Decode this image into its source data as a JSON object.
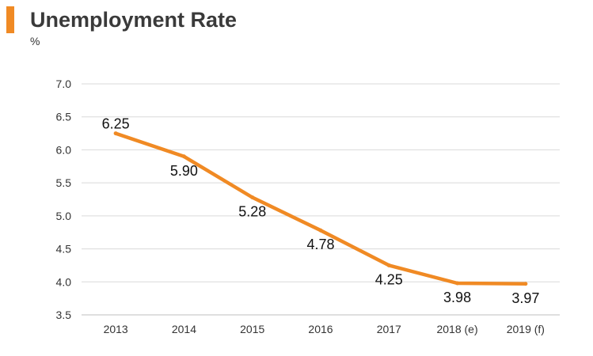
{
  "chart_data": {
    "type": "line",
    "title": "Unemployment Rate",
    "unit_label": "%",
    "categories": [
      "2013",
      "2014",
      "2015",
      "2016",
      "2017",
      "2018 (e)",
      "2019 (f)"
    ],
    "series": [
      {
        "values": [
          6.25,
          5.9,
          5.28,
          4.78,
          4.25,
          3.98,
          3.97
        ],
        "data_labels": [
          "6.25",
          "5.90",
          "5.28",
          "4.78",
          "4.25",
          "3.98",
          "3.97"
        ]
      }
    ],
    "y_ticks": [
      "3.5",
      "4.0",
      "4.5",
      "5.0",
      "5.5",
      "6.0",
      "6.5",
      "7.0"
    ],
    "ylim": [
      3.5,
      7.0
    ],
    "grid": true,
    "legend": "none",
    "colors": {
      "line": "#f08a24",
      "accent": "#f08a24",
      "grid": "#d9d9d9"
    }
  }
}
